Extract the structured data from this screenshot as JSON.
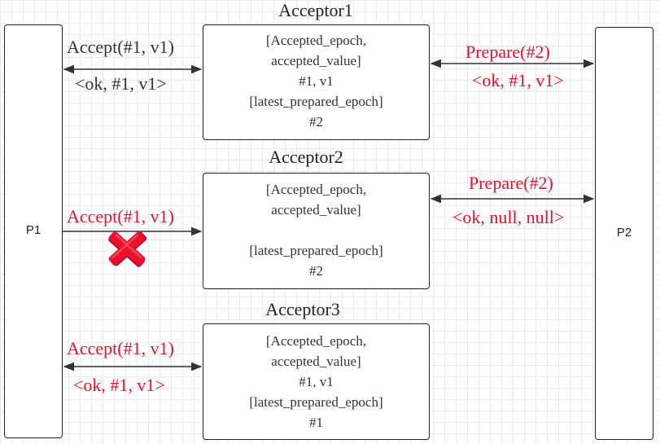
{
  "participants": {
    "p1": "P1",
    "p2": "P2"
  },
  "acceptors": [
    {
      "title": "Acceptor1",
      "lines": [
        "[Accepted_epoch,",
        "accepted_value]",
        "#1, v1",
        "[latest_prepared_epoch]",
        "#2"
      ]
    },
    {
      "title": "Acceptor2",
      "lines": [
        "[Accepted_epoch,",
        "accepted_value]",
        "",
        "[latest_prepared_epoch]",
        "#2"
      ]
    },
    {
      "title": "Acceptor3",
      "lines": [
        "[Accepted_epoch,",
        "accepted_value]",
        "#1, v1",
        "[latest_prepared_epoch]",
        "#1"
      ]
    }
  ],
  "messages": {
    "a1_accept": "Accept(#1, v1)",
    "a1_accept_reply": "<ok, #1, v1>",
    "a1_prepare": "Prepare(#2)",
    "a1_prepare_reply": "<ok, #1, v1>",
    "a2_accept": "Accept(#1, v1)",
    "a2_prepare": "Prepare(#2)",
    "a2_prepare_reply": "<ok, null, null>",
    "a3_accept": "Accept(#1, v1)",
    "a3_accept_reply": "<ok, #1, v1>"
  },
  "colors": {
    "highlight": "#e8102a",
    "normal": "#333333",
    "failure_mark": "#e8102a"
  },
  "icons": {
    "failure": "cross-icon"
  }
}
